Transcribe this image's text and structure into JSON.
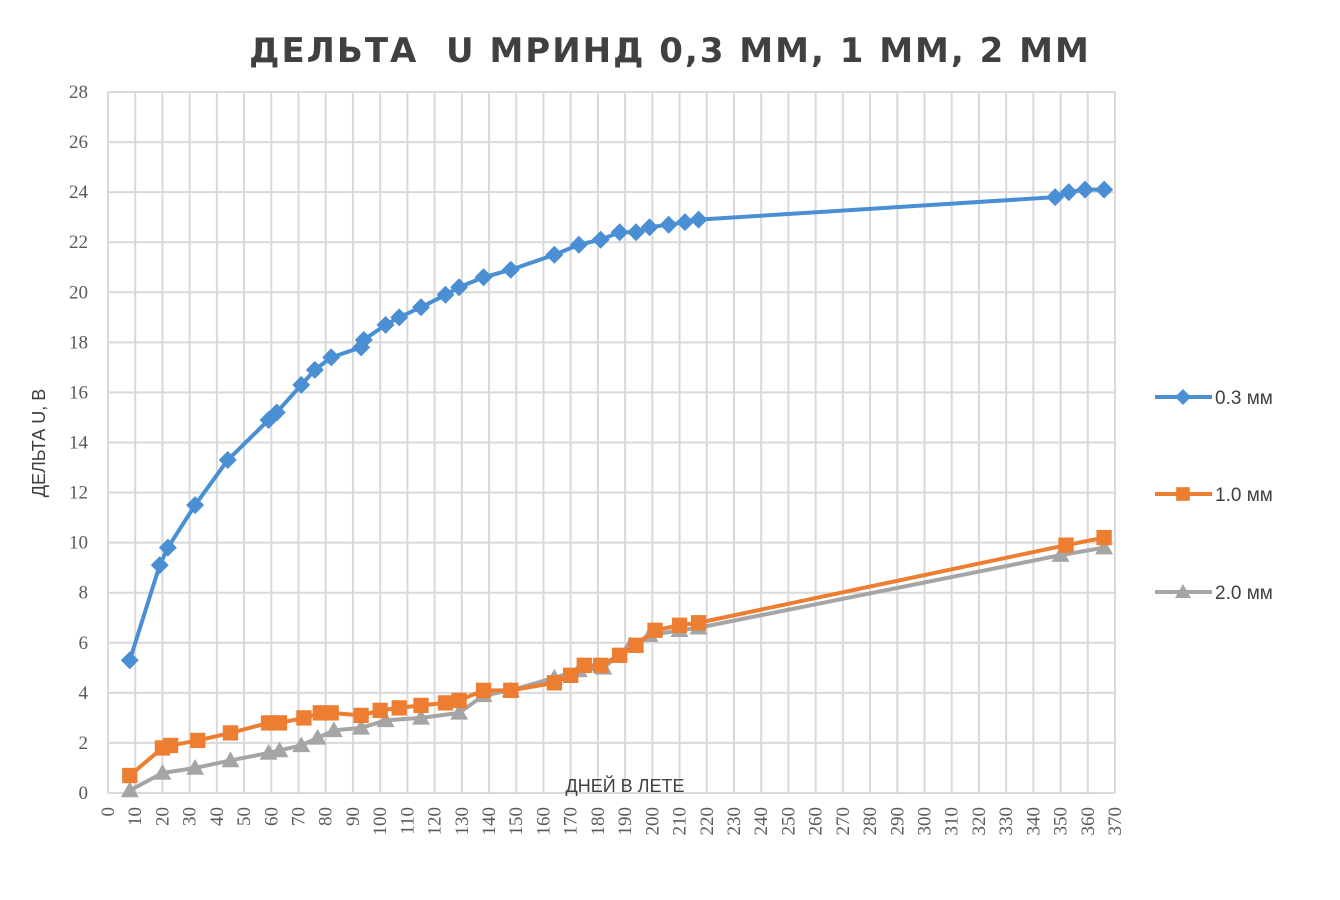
{
  "chart_data": {
    "type": "line",
    "title": "ДЕЛЬТА  U МРИНД 0,3 ММ, 1 ММ, 2 ММ",
    "xlabel": "ДНЕЙ В ЛЕТЕ",
    "ylabel": "ДЕЛЬТА U, В",
    "xlim": [
      0,
      370
    ],
    "ylim": [
      0,
      28
    ],
    "xticks": [
      0,
      10,
      20,
      30,
      40,
      50,
      60,
      70,
      80,
      90,
      100,
      110,
      120,
      130,
      140,
      150,
      160,
      170,
      180,
      190,
      200,
      210,
      220,
      230,
      240,
      250,
      260,
      270,
      280,
      290,
      300,
      310,
      320,
      330,
      340,
      350,
      360,
      370
    ],
    "yticks": [
      0,
      2,
      4,
      6,
      8,
      10,
      12,
      14,
      16,
      18,
      20,
      22,
      24,
      26,
      28
    ],
    "grid": true,
    "legend_position": "right",
    "series": [
      {
        "name": "0.3 мм",
        "color": "#4a8fd4",
        "marker": "diamond",
        "x": [
          8,
          19,
          22,
          32,
          44,
          59,
          62,
          71,
          76,
          82,
          93,
          94,
          102,
          107,
          115,
          124,
          129,
          138,
          148,
          164,
          173,
          181,
          188,
          194,
          199,
          206,
          212,
          217,
          348,
          353,
          359,
          366
        ],
        "y": [
          5.3,
          9.1,
          9.8,
          11.5,
          13.3,
          14.9,
          15.2,
          16.3,
          16.9,
          17.4,
          17.8,
          18.1,
          18.7,
          19.0,
          19.4,
          19.9,
          20.2,
          20.6,
          20.9,
          21.5,
          21.9,
          22.1,
          22.4,
          22.4,
          22.6,
          22.7,
          22.8,
          22.9,
          23.8,
          24.0,
          24.1,
          24.1
        ]
      },
      {
        "name": "1.0 мм",
        "color": "#ed7d31",
        "marker": "square",
        "x": [
          8,
          20,
          23,
          33,
          45,
          59,
          63,
          72,
          78,
          82,
          93,
          100,
          107,
          115,
          124,
          129,
          138,
          148,
          164,
          170,
          175,
          181,
          188,
          194,
          201,
          210,
          217,
          352,
          366
        ],
        "y": [
          0.7,
          1.8,
          1.9,
          2.1,
          2.4,
          2.8,
          2.8,
          3.0,
          3.2,
          3.2,
          3.1,
          3.3,
          3.4,
          3.5,
          3.6,
          3.7,
          4.1,
          4.1,
          4.4,
          4.7,
          5.1,
          5.1,
          5.5,
          5.9,
          6.5,
          6.7,
          6.8,
          9.9,
          10.2
        ]
      },
      {
        "name": "2.0 мм",
        "color": "#a5a5a5",
        "marker": "triangle",
        "x": [
          8,
          20,
          32,
          45,
          59,
          63,
          71,
          77,
          83,
          93,
          102,
          115,
          129,
          138,
          148,
          164,
          173,
          182,
          192,
          199,
          210,
          217,
          350,
          366
        ],
        "y": [
          0.1,
          0.8,
          1.0,
          1.3,
          1.6,
          1.7,
          1.9,
          2.2,
          2.5,
          2.6,
          2.9,
          3.0,
          3.2,
          3.9,
          4.1,
          4.6,
          4.9,
          5.0,
          5.9,
          6.3,
          6.5,
          6.6,
          9.5,
          9.8
        ]
      }
    ]
  }
}
